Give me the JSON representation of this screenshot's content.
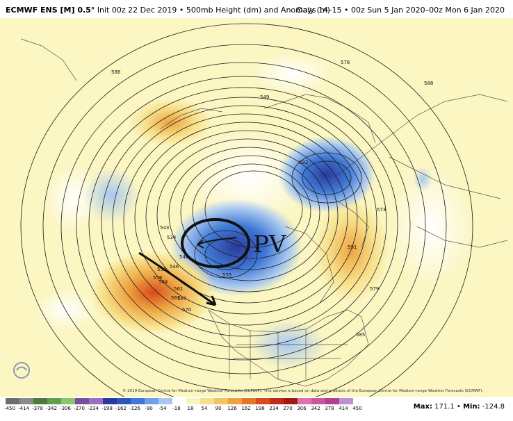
{
  "header": {
    "model": "ECMWF ENS [M] 0.5°",
    "init": "Init 00z 22 Dec 2019 • 500mb Height (dm) and Anomaly (m)",
    "valid": "Days 14–15 • 00z Sun 5 Jan 2020–00z Mon 6 Jan 2020"
  },
  "annotations": {
    "pv_label": "PV"
  },
  "contour_labels": [
    "588",
    "549",
    "576",
    "588",
    "543",
    "534",
    "540",
    "546",
    "552",
    "558",
    "564",
    "570",
    "567",
    "555",
    "573",
    "579",
    "585",
    "591",
    "582",
    "561",
    "567"
  ],
  "copyright": "© 2019 European Centre for Medium-range Weather Forecasts (ECMWF). This service is based on data and products of the European Centre for Medium-range Weather Forecasts (ECMWF).",
  "colorbar": {
    "labels": [
      "-450",
      "-414",
      "-378",
      "-342",
      "-306",
      "-270",
      "-234",
      "-198",
      "-162",
      "-126",
      "-90",
      "-54",
      "-18",
      "18",
      "54",
      "90",
      "126",
      "162",
      "198",
      "234",
      "270",
      "306",
      "342",
      "378",
      "414",
      "450"
    ],
    "colors": [
      "#6e6e6e",
      "#8a8a8a",
      "#4d7a3a",
      "#5fa14a",
      "#8ac46b",
      "#7a4da0",
      "#9a6fc0",
      "#2b3a9a",
      "#2e55b8",
      "#3f78d6",
      "#6ea0e6",
      "#a8c8f0",
      "#ffffff",
      "#fbf3bd",
      "#f7e08a",
      "#f3c460",
      "#eea340",
      "#e8742a",
      "#d84a1e",
      "#c02a1a",
      "#a01a14",
      "#e070b0",
      "#cc55a0",
      "#b04090",
      "#c090d0"
    ],
    "max_label": "Max:",
    "max_value": "171.1",
    "min_label": "Min:",
    "min_value": "-124.8"
  },
  "logo": {
    "name": "WeatherBELL"
  },
  "colors": {
    "neutral_fill": "#fbf6c2",
    "warm_anomaly": "#e8742a",
    "cold_anomaly": "#2e55b8"
  }
}
